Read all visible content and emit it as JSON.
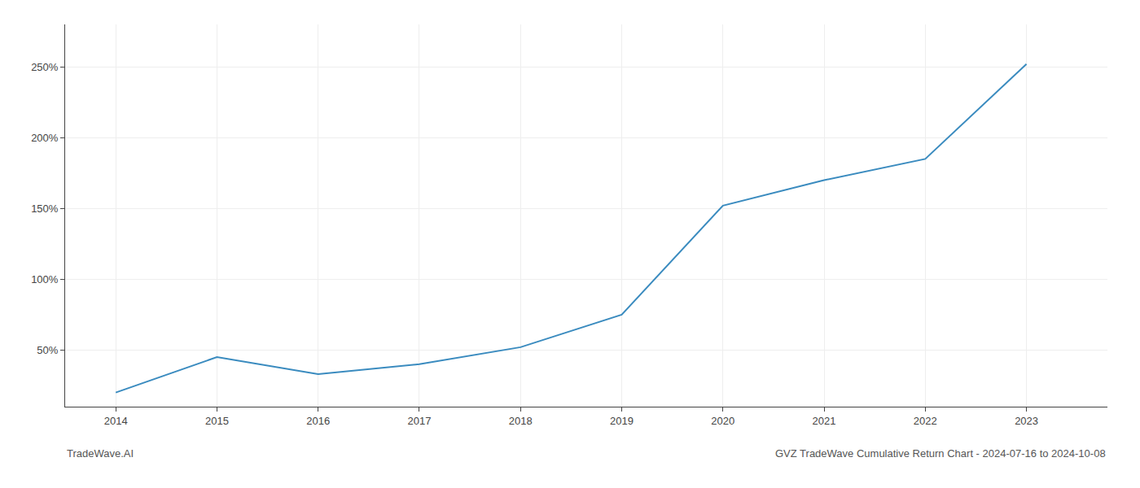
{
  "chart_data": {
    "type": "line",
    "title": "GVZ TradeWave Cumulative Return Chart - 2024-07-16 to 2024-10-08",
    "annotations": [
      "TradeWave.AI"
    ],
    "x": [
      2014,
      2015,
      2016,
      2017,
      2018,
      2019,
      2020,
      2021,
      2022,
      2023
    ],
    "values": [
      20,
      45,
      33,
      40,
      52,
      75,
      152,
      170,
      185,
      252
    ],
    "color": "#3a8bbf",
    "xlim": [
      2013.5,
      2023.8
    ],
    "xticks": [
      2014,
      2015,
      2016,
      2017,
      2018,
      2019,
      2020,
      2021,
      2022,
      2023
    ],
    "ylim": [
      10,
      280
    ],
    "yticks": [
      {
        "value": 50,
        "label": "50%"
      },
      {
        "value": 100,
        "label": "100%"
      },
      {
        "value": 150,
        "label": "150%"
      },
      {
        "value": 200,
        "label": "200%"
      },
      {
        "value": 250,
        "label": "250%"
      }
    ],
    "grid": true
  }
}
